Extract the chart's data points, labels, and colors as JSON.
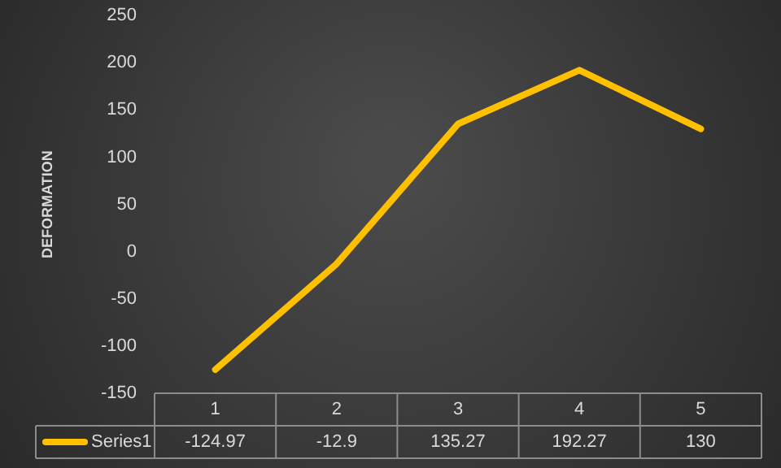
{
  "chart_data": {
    "type": "line",
    "ylabel": "DEFORMATION",
    "categories": [
      "1",
      "2",
      "3",
      "4",
      "5"
    ],
    "series": [
      {
        "name": "Series1",
        "color": "#ffc000",
        "values": [
          -124.97,
          -12.9,
          135.27,
          192.27,
          130
        ]
      }
    ],
    "ylim": [
      -150,
      250
    ],
    "yticks": [
      -150,
      -100,
      -50,
      0,
      50,
      100,
      150,
      200,
      250
    ],
    "grid": false,
    "legend": "bottom",
    "data_labels": true,
    "marker": "none",
    "line_style": "solid"
  }
}
